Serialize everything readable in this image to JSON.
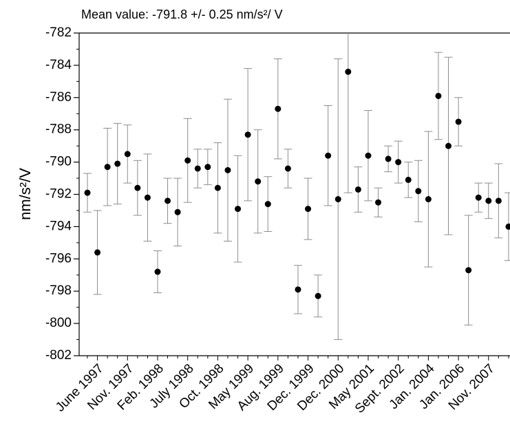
{
  "chart_data": {
    "type": "scatter",
    "title": "Mean value: -791.8 +/- 0.25 nm/s²/ V",
    "y_label": "nm/s²/V",
    "categories": [
      null,
      "June 1997",
      null,
      null,
      "Nov. 1997",
      null,
      null,
      "Feb. 1998",
      null,
      null,
      "July 1998",
      null,
      null,
      "Oct. 1998",
      null,
      null,
      "May 1999",
      null,
      null,
      "Aug. 1999",
      null,
      null,
      "Dec. 1999",
      null,
      null,
      "Dec. 2000",
      null,
      null,
      "May 2001",
      null,
      null,
      "Sept. 2002",
      null,
      null,
      "Jan. 2004",
      null,
      null,
      "Jan. 2006",
      null,
      null,
      "Nov. 2007",
      null,
      null
    ],
    "series": [
      {
        "color": "#000000",
        "error_color": "#8c8c8c",
        "values": [
          -791.9,
          -795.6,
          -790.3,
          -790.1,
          -789.5,
          -791.6,
          -792.2,
          -796.8,
          -792.4,
          -793.1,
          -789.9,
          -790.4,
          -790.3,
          -791.6,
          -790.5,
          -792.9,
          -788.3,
          -791.2,
          -792.6,
          -786.7,
          -790.4,
          -797.9,
          -792.9,
          -798.3,
          -789.6,
          -792.3,
          -784.4,
          -791.7,
          -789.6,
          -792.5,
          -789.8,
          -790.0,
          -791.1,
          -791.8,
          -792.3,
          -785.9,
          -789.0,
          -787.5,
          -796.7,
          -792.2,
          -792.4,
          -792.4,
          -794.0
        ],
        "errors": [
          1.2,
          2.6,
          2.4,
          2.5,
          1.8,
          1.7,
          2.7,
          1.3,
          1.4,
          2.1,
          2.6,
          1.2,
          1.1,
          2.8,
          4.4,
          3.3,
          4.1,
          3.2,
          1.7,
          3.1,
          1.2,
          1.5,
          1.9,
          1.3,
          3.1,
          8.7,
          7.5,
          1.4,
          2.8,
          0.9,
          0.8,
          1.3,
          1.1,
          1.9,
          4.2,
          2.7,
          5.5,
          1.5,
          3.4,
          0.9,
          1.1,
          2.3,
          2.1
        ]
      }
    ],
    "ylim": [
      -802,
      -782
    ],
    "yticks": [
      -802,
      -800,
      -798,
      -796,
      -794,
      -792,
      -790,
      -788,
      -786,
      -784,
      -782
    ]
  }
}
